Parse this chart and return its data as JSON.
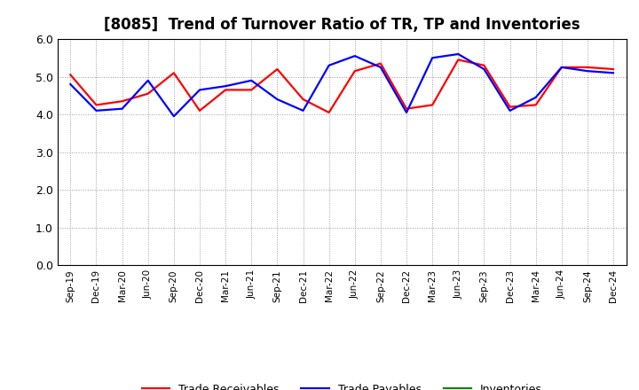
{
  "title": "[8085]  Trend of Turnover Ratio of TR, TP and Inventories",
  "x_labels": [
    "Sep-19",
    "Dec-19",
    "Mar-20",
    "Jun-20",
    "Sep-20",
    "Dec-20",
    "Mar-21",
    "Jun-21",
    "Sep-21",
    "Dec-21",
    "Mar-22",
    "Jun-22",
    "Sep-22",
    "Dec-22",
    "Mar-23",
    "Jun-23",
    "Sep-23",
    "Dec-23",
    "Mar-24",
    "Jun-24",
    "Sep-24",
    "Dec-24"
  ],
  "trade_receivables": [
    5.05,
    4.25,
    4.35,
    4.55,
    5.1,
    4.1,
    4.65,
    4.65,
    5.2,
    4.4,
    4.05,
    5.15,
    5.35,
    4.15,
    4.25,
    5.45,
    5.3,
    4.2,
    4.25,
    5.25,
    5.25,
    5.2
  ],
  "trade_payables": [
    4.8,
    4.1,
    4.15,
    4.9,
    3.95,
    4.65,
    4.75,
    4.9,
    4.4,
    4.1,
    5.3,
    5.55,
    5.25,
    4.05,
    5.5,
    5.6,
    5.2,
    4.1,
    4.45,
    5.25,
    5.15,
    5.1
  ],
  "inventories": [
    null,
    null,
    null,
    null,
    null,
    null,
    null,
    null,
    null,
    null,
    null,
    null,
    null,
    null,
    null,
    null,
    null,
    null,
    null,
    null,
    null,
    null
  ],
  "tr_color": "#ff0000",
  "tp_color": "#0000ff",
  "inv_color": "#008800",
  "ylim": [
    0.0,
    6.0
  ],
  "yticks": [
    0.0,
    1.0,
    2.0,
    3.0,
    4.0,
    5.0,
    6.0
  ],
  "background_color": "#ffffff",
  "grid_color": "#999999",
  "title_fontsize": 12,
  "legend_labels": [
    "Trade Receivables",
    "Trade Payables",
    "Inventories"
  ]
}
